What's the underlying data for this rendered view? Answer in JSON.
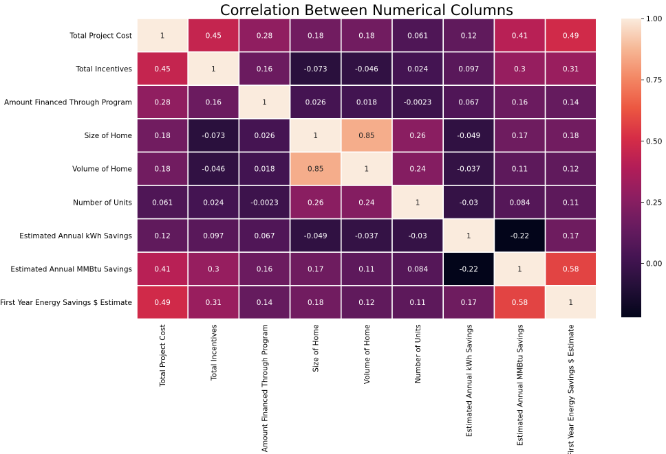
{
  "chart_data": {
    "type": "heatmap",
    "title": "Correlation Between Numerical Columns",
    "xlabel": "",
    "ylabel": "",
    "labels": [
      "Total Project Cost",
      "Total Incentives",
      "Amount Financed Through Program",
      "Size of Home",
      "Volume of Home",
      "Number of Units",
      "Estimated Annual kWh Savings",
      "Estimated Annual MMBtu Savings",
      "First Year Energy Savings $ Estimate"
    ],
    "matrix": [
      [
        1,
        0.45,
        0.28,
        0.18,
        0.18,
        0.061,
        0.12,
        0.41,
        0.49
      ],
      [
        0.45,
        1,
        0.16,
        -0.073,
        -0.046,
        0.024,
        0.097,
        0.3,
        0.31
      ],
      [
        0.28,
        0.16,
        1,
        0.026,
        0.018,
        -0.0023,
        0.067,
        0.16,
        0.14
      ],
      [
        0.18,
        -0.073,
        0.026,
        1,
        0.85,
        0.26,
        -0.049,
        0.17,
        0.18
      ],
      [
        0.18,
        -0.046,
        0.018,
        0.85,
        1,
        0.24,
        -0.037,
        0.11,
        0.12
      ],
      [
        0.061,
        0.024,
        -0.0023,
        0.26,
        0.24,
        1,
        -0.03,
        0.084,
        0.11
      ],
      [
        0.12,
        0.097,
        0.067,
        -0.049,
        -0.037,
        -0.03,
        1,
        -0.22,
        0.17
      ],
      [
        0.41,
        0.3,
        0.16,
        0.17,
        0.11,
        0.084,
        -0.22,
        1,
        0.58
      ],
      [
        0.49,
        0.31,
        0.14,
        0.18,
        0.12,
        0.11,
        0.17,
        0.58,
        1
      ]
    ],
    "display_labels": [
      [
        "1",
        "0.45",
        "0.28",
        "0.18",
        "0.18",
        "0.061",
        "0.12",
        "0.41",
        "0.49"
      ],
      [
        "0.45",
        "1",
        "0.16",
        "-0.073",
        "-0.046",
        "0.024",
        "0.097",
        "0.3",
        "0.31"
      ],
      [
        "0.28",
        "0.16",
        "1",
        "0.026",
        "0.018",
        "-0.0023",
        "0.067",
        "0.16",
        "0.14"
      ],
      [
        "0.18",
        "-0.073",
        "0.026",
        "1",
        "0.85",
        "0.26",
        "-0.049",
        "0.17",
        "0.18"
      ],
      [
        "0.18",
        "-0.046",
        "0.018",
        "0.85",
        "1",
        "0.24",
        "-0.037",
        "0.11",
        "0.12"
      ],
      [
        "0.061",
        "0.024",
        "-0.0023",
        "0.26",
        "0.24",
        "1",
        "-0.03",
        "0.084",
        "0.11"
      ],
      [
        "0.12",
        "0.097",
        "0.067",
        "-0.049",
        "-0.037",
        "-0.03",
        "1",
        "-0.22",
        "0.17"
      ],
      [
        "0.41",
        "0.3",
        "0.16",
        "0.17",
        "0.11",
        "0.084",
        "-0.22",
        "1",
        "0.58"
      ],
      [
        "0.49",
        "0.31",
        "0.14",
        "0.18",
        "0.12",
        "0.11",
        "0.17",
        "0.58",
        "1"
      ]
    ],
    "colorscale": "rocket",
    "vmin": -0.22,
    "vmax": 1.0,
    "colorbar_ticks": [
      0.0,
      0.25,
      0.5,
      0.75,
      1.0
    ],
    "colorbar_tick_labels": [
      "0.00",
      "0.25",
      "0.50",
      "0.75",
      "1.00"
    ],
    "annotations_shown": true,
    "cell_borders": "#ffffff",
    "grid": false,
    "legend": "colorbar-right"
  }
}
